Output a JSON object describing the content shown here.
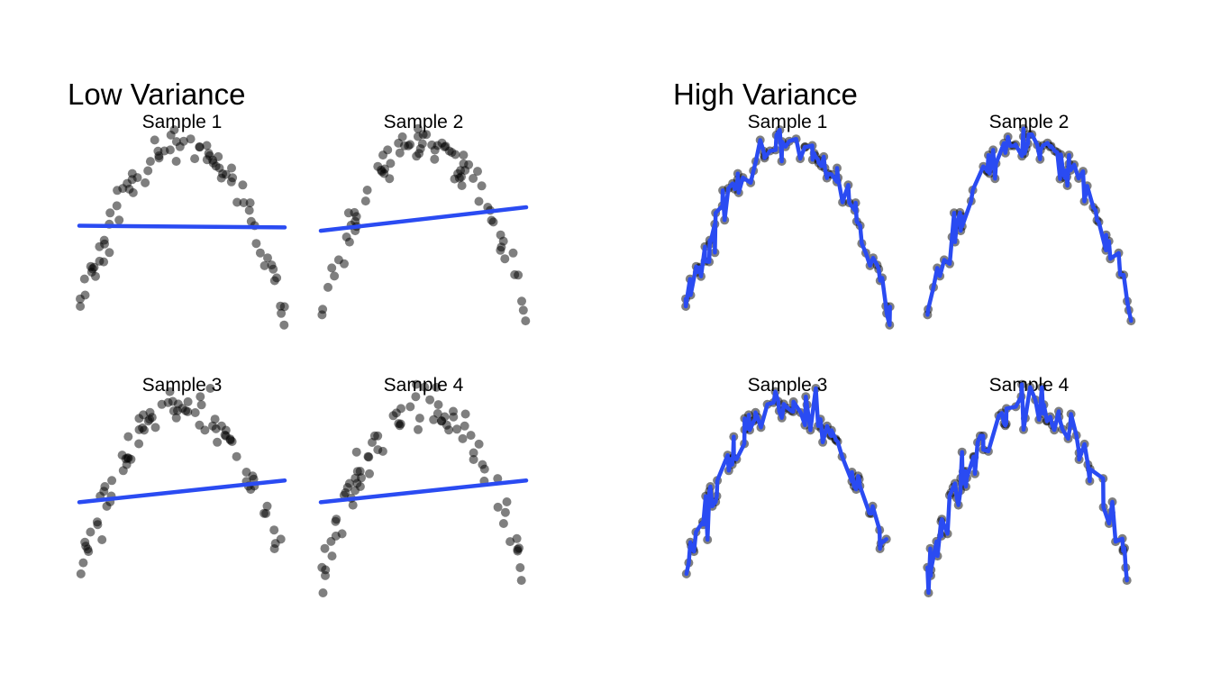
{
  "colors": {
    "points": "#000000",
    "fit": "#2a4bf2",
    "background": "#ffffff"
  },
  "chart_data": [
    {
      "type": "scatter",
      "title": "Low Variance",
      "fit_style": "linear",
      "xlim": [
        0,
        1
      ],
      "ylim": [
        -0.25,
        1.05
      ],
      "panels": [
        {
          "title": "Sample 1",
          "fit_line": {
            "y_start": 0.51,
            "y_end": 0.5
          }
        },
        {
          "title": "Sample 2",
          "fit_line": {
            "y_start": 0.48,
            "y_end": 0.62
          }
        },
        {
          "title": "Sample 3",
          "fit_line": {
            "y_start": 0.43,
            "y_end": 0.56
          }
        },
        {
          "title": "Sample 4",
          "fit_line": {
            "y_start": 0.43,
            "y_end": 0.56
          }
        }
      ]
    },
    {
      "type": "scatter",
      "title": "High Variance",
      "fit_style": "interpolating",
      "xlim": [
        0,
        1
      ],
      "ylim": [
        -0.25,
        1.05
      ],
      "panels": [
        {
          "title": "Sample 1"
        },
        {
          "title": "Sample 2"
        },
        {
          "title": "Sample 3"
        },
        {
          "title": "Sample 4"
        }
      ]
    }
  ]
}
